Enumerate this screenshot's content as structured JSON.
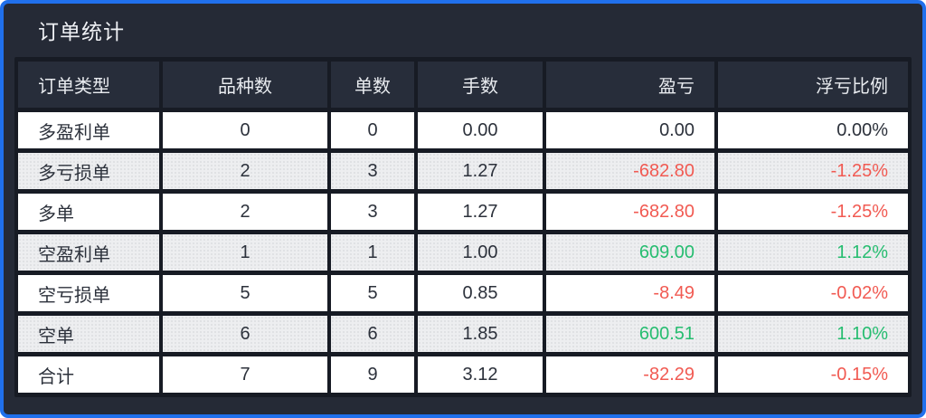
{
  "panel": {
    "title": "订单统计"
  },
  "table": {
    "headers": [
      "订单类型",
      "品种数",
      "单数",
      "手数",
      "盈亏",
      "浮亏比例"
    ],
    "rows": [
      {
        "type": "多盈利单",
        "varieties": "0",
        "orders": "0",
        "lots": "0.00",
        "pnl": "0.00",
        "ratio": "0.00%",
        "sentiment": "neutral"
      },
      {
        "type": "多亏损单",
        "varieties": "2",
        "orders": "3",
        "lots": "1.27",
        "pnl": "-682.80",
        "ratio": "-1.25%",
        "sentiment": "loss"
      },
      {
        "type": "多单",
        "varieties": "2",
        "orders": "3",
        "lots": "1.27",
        "pnl": "-682.80",
        "ratio": "-1.25%",
        "sentiment": "loss"
      },
      {
        "type": "空盈利单",
        "varieties": "1",
        "orders": "1",
        "lots": "1.00",
        "pnl": "609.00",
        "ratio": "1.12%",
        "sentiment": "profit"
      },
      {
        "type": "空亏损单",
        "varieties": "5",
        "orders": "5",
        "lots": "0.85",
        "pnl": "-8.49",
        "ratio": "-0.02%",
        "sentiment": "loss"
      },
      {
        "type": "空单",
        "varieties": "6",
        "orders": "6",
        "lots": "1.85",
        "pnl": "600.51",
        "ratio": "1.10%",
        "sentiment": "profit"
      },
      {
        "type": "合计",
        "varieties": "7",
        "orders": "9",
        "lots": "3.12",
        "pnl": "-82.29",
        "ratio": "-0.15%",
        "sentiment": "loss"
      }
    ]
  },
  "colors": {
    "accent_border": "#2070EC",
    "panel_background": "#252A36",
    "header_cell_background": "#272D3A",
    "row_background": "#FFFFFF",
    "row_alt_background": "#EDEEF0",
    "loss_text": "#F15A52",
    "profit_text": "#26BD70",
    "neutral_text": "#2C313B"
  }
}
